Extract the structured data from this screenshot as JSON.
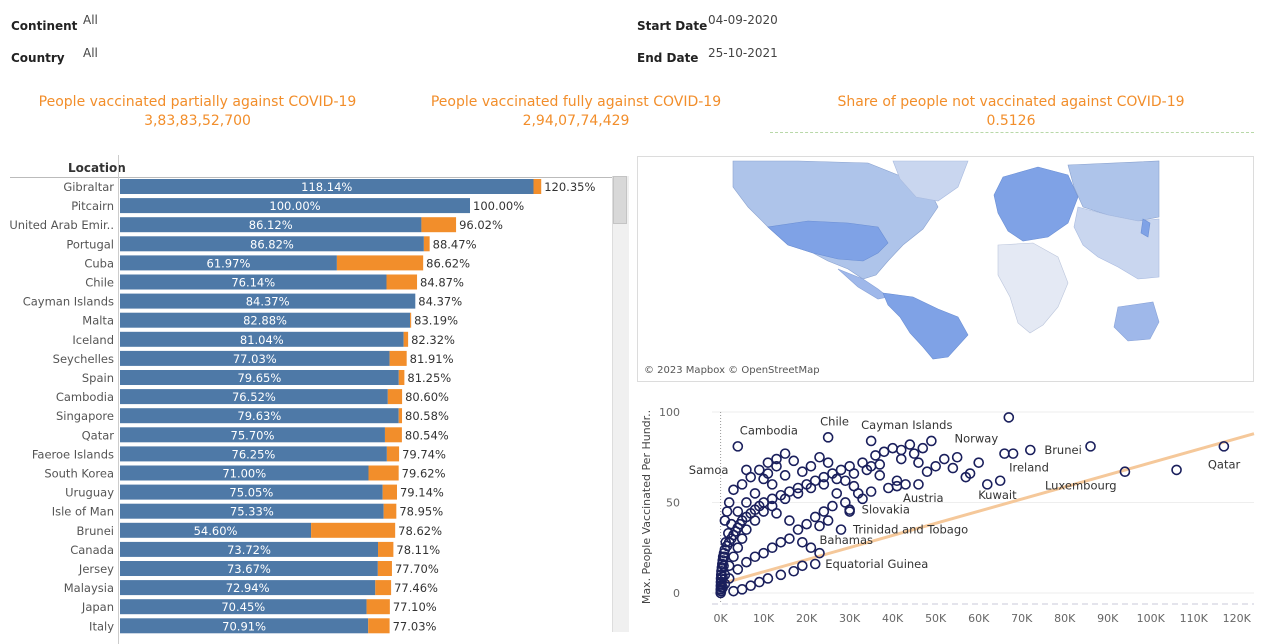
{
  "filters": {
    "continent_label": "Continent",
    "continent_value": "All",
    "country_label": "Country",
    "country_value": "All",
    "start_label": "Start Date",
    "start_value": "04-09-2020",
    "end_label": "End Date",
    "end_value": "25-10-2021"
  },
  "kpis": [
    {
      "title": "People vaccinated partially against COVID-19",
      "value": "3,83,83,52,700"
    },
    {
      "title": "People vaccinated fully against COVID-19",
      "value": "2,94,07,74,429"
    },
    {
      "title": "Share of people not vaccinated against COVID-19",
      "value": "0.5126"
    }
  ],
  "colors": {
    "fully": "#4e79a7",
    "partial": "#f28e2b",
    "scatter_point": "#1a1f5c",
    "trend": "#f5c89a",
    "accent": "#f28e2b"
  },
  "map": {
    "credit": "© 2023 Mapbox © OpenStreetMap"
  },
  "chart_data": [
    {
      "type": "bar",
      "stacked": true,
      "orientation": "horizontal",
      "header": "Location",
      "categories": [
        "Gibraltar",
        "Pitcairn",
        "United Arab Emir..",
        "Portugal",
        "Cuba",
        "Chile",
        "Cayman Islands",
        "Malta",
        "Iceland",
        "Seychelles",
        "Spain",
        "Cambodia",
        "Singapore",
        "Qatar",
        "Faeroe Islands",
        "South Korea",
        "Uruguay",
        "Isle of Man",
        "Brunei",
        "Canada",
        "Jersey",
        "Malaysia",
        "Japan",
        "Italy"
      ],
      "fully": [
        118.14,
        100.0,
        86.12,
        86.82,
        61.97,
        76.14,
        84.37,
        82.88,
        81.04,
        77.03,
        79.65,
        76.52,
        79.63,
        75.7,
        76.25,
        71.0,
        75.05,
        75.33,
        54.6,
        73.72,
        73.67,
        72.94,
        70.45,
        70.91
      ],
      "total": [
        120.35,
        100.0,
        96.02,
        88.47,
        86.62,
        84.87,
        84.37,
        83.19,
        82.32,
        81.91,
        81.25,
        80.6,
        80.58,
        80.54,
        79.74,
        79.62,
        79.14,
        78.95,
        78.62,
        78.11,
        77.7,
        77.46,
        77.1,
        77.03
      ],
      "fully_labels": [
        "118.14%",
        "100.00%",
        "86.12%",
        "86.82%",
        "61.97%",
        "76.14%",
        "84.37%",
        "82.88%",
        "81.04%",
        "77.03%",
        "79.65%",
        "76.52%",
        "79.63%",
        "75.70%",
        "76.25%",
        "71.00%",
        "75.05%",
        "75.33%",
        "54.60%",
        "73.72%",
        "73.67%",
        "72.94%",
        "70.45%",
        "70.91%"
      ],
      "total_labels": [
        "120.35%",
        "100.00%",
        "96.02%",
        "88.47%",
        "86.62%",
        "84.87%",
        "84.37%",
        "83.19%",
        "82.32%",
        "81.91%",
        "81.25%",
        "80.60%",
        "80.58%",
        "80.54%",
        "79.74%",
        "79.62%",
        "79.14%",
        "78.95%",
        "78.62%",
        "78.11%",
        "77.70%",
        "77.46%",
        "77.10%",
        "77.03%"
      ]
    },
    {
      "type": "scatter",
      "ylabel": "Max. People Vaccinated Per Hundr..",
      "xticks": [
        "0K",
        "10K",
        "20K",
        "30K",
        "40K",
        "50K",
        "60K",
        "70K",
        "80K",
        "90K",
        "100K",
        "110K",
        "120K"
      ],
      "yticks": [
        "0",
        "50",
        "100"
      ],
      "xlim": [
        -2000,
        124000
      ],
      "ylim": [
        -5,
        100
      ],
      "trend": [
        [
          0,
          5
        ],
        [
          124000,
          88
        ]
      ],
      "labeled_points": [
        {
          "label": "Cambodia",
          "x": 4000,
          "y": 81
        },
        {
          "label": "Chile",
          "x": 25000,
          "y": 86
        },
        {
          "label": "Cayman Islands",
          "x": 35000,
          "y": 84
        },
        {
          "label": "Norway",
          "x": 66000,
          "y": 77
        },
        {
          "label": "Brunei",
          "x": 72000,
          "y": 79
        },
        {
          "label": "Ireland",
          "x": 68000,
          "y": 77
        },
        {
          "label": "Samoa",
          "x": 6000,
          "y": 68
        },
        {
          "label": "Qatar",
          "x": 117000,
          "y": 81
        },
        {
          "label": "Luxembourg",
          "x": 94000,
          "y": 67
        },
        {
          "label": "Kuwait",
          "x": 65000,
          "y": 62
        },
        {
          "label": "Austria",
          "x": 41000,
          "y": 59
        },
        {
          "label": "Slovakia",
          "x": 30000,
          "y": 46
        },
        {
          "label": "Trinidad and Tobago",
          "x": 28000,
          "y": 35
        },
        {
          "label": "Bahamas",
          "x": 23000,
          "y": 37
        },
        {
          "label": "Equatorial Guinea",
          "x": 22000,
          "y": 16
        }
      ],
      "points": [
        [
          67000,
          97
        ],
        [
          86000,
          81
        ],
        [
          106000,
          68
        ],
        [
          52000,
          74
        ],
        [
          49000,
          84
        ],
        [
          44000,
          82
        ],
        [
          40000,
          80
        ],
        [
          38000,
          78
        ],
        [
          36000,
          76
        ],
        [
          33000,
          72
        ],
        [
          30000,
          70
        ],
        [
          28000,
          68
        ],
        [
          26000,
          66
        ],
        [
          24000,
          64
        ],
        [
          22000,
          62
        ],
        [
          20000,
          60
        ],
        [
          18000,
          58
        ],
        [
          16000,
          56
        ],
        [
          14000,
          54
        ],
        [
          12000,
          52
        ],
        [
          10000,
          50
        ],
        [
          9000,
          48
        ],
        [
          8000,
          46
        ],
        [
          7000,
          44
        ],
        [
          6000,
          42
        ],
        [
          5000,
          40
        ],
        [
          4500,
          38
        ],
        [
          4000,
          36
        ],
        [
          3500,
          34
        ],
        [
          3000,
          32
        ],
        [
          2500,
          30
        ],
        [
          2000,
          28
        ],
        [
          1500,
          26
        ],
        [
          1000,
          24
        ],
        [
          800,
          22
        ],
        [
          600,
          20
        ],
        [
          500,
          18
        ],
        [
          400,
          16
        ],
        [
          300,
          14
        ],
        [
          200,
          12
        ],
        [
          150,
          10
        ],
        [
          100,
          8
        ],
        [
          80,
          6
        ],
        [
          60,
          4
        ],
        [
          40,
          2
        ],
        [
          20,
          0
        ],
        [
          1000,
          10
        ],
        [
          2000,
          15
        ],
        [
          3000,
          20
        ],
        [
          4000,
          25
        ],
        [
          5000,
          30
        ],
        [
          6000,
          35
        ],
        [
          8000,
          40
        ],
        [
          10000,
          45
        ],
        [
          12000,
          48
        ],
        [
          15000,
          52
        ],
        [
          18000,
          55
        ],
        [
          21000,
          58
        ],
        [
          24000,
          60
        ],
        [
          27000,
          63
        ],
        [
          31000,
          66
        ],
        [
          34000,
          68
        ],
        [
          37000,
          71
        ],
        [
          42000,
          74
        ],
        [
          45000,
          77
        ],
        [
          47000,
          80
        ],
        [
          50000,
          70
        ],
        [
          55000,
          75
        ],
        [
          58000,
          66
        ],
        [
          60000,
          72
        ],
        [
          57000,
          64
        ],
        [
          43000,
          60
        ],
        [
          39000,
          58
        ],
        [
          35000,
          56
        ],
        [
          32000,
          55
        ],
        [
          29000,
          50
        ],
        [
          26000,
          48
        ],
        [
          24000,
          45
        ],
        [
          22000,
          42
        ],
        [
          20000,
          38
        ],
        [
          18000,
          35
        ],
        [
          16000,
          30
        ],
        [
          14000,
          28
        ],
        [
          12000,
          25
        ],
        [
          10000,
          22
        ],
        [
          8000,
          20
        ],
        [
          6000,
          17
        ],
        [
          4000,
          13
        ],
        [
          2000,
          8
        ],
        [
          1000,
          5
        ],
        [
          500,
          3
        ],
        [
          15000,
          65
        ],
        [
          13000,
          70
        ],
        [
          11000,
          72
        ],
        [
          9000,
          68
        ],
        [
          7000,
          64
        ],
        [
          5000,
          60
        ],
        [
          3000,
          57
        ],
        [
          2000,
          50
        ],
        [
          1500,
          45
        ],
        [
          1000,
          40
        ],
        [
          13000,
          44
        ],
        [
          16000,
          40
        ],
        [
          19000,
          28
        ],
        [
          21000,
          25
        ],
        [
          23000,
          22
        ],
        [
          19000,
          15
        ],
        [
          17000,
          12
        ],
        [
          14000,
          10
        ],
        [
          11000,
          8
        ],
        [
          9000,
          6
        ],
        [
          7000,
          4
        ],
        [
          5000,
          2
        ],
        [
          3000,
          1
        ],
        [
          25000,
          72
        ],
        [
          23000,
          75
        ],
        [
          21000,
          70
        ],
        [
          19000,
          67
        ],
        [
          17000,
          73
        ],
        [
          15000,
          77
        ],
        [
          13000,
          74
        ],
        [
          11000,
          66
        ],
        [
          27000,
          55
        ],
        [
          29000,
          62
        ],
        [
          31000,
          59
        ],
        [
          33000,
          52
        ],
        [
          35000,
          70
        ],
        [
          37000,
          65
        ],
        [
          42000,
          79
        ],
        [
          46000,
          72
        ],
        [
          48000,
          67
        ],
        [
          54000,
          69
        ],
        [
          62000,
          60
        ],
        [
          46000,
          60
        ],
        [
          41000,
          62
        ],
        [
          30000,
          45
        ],
        [
          25000,
          40
        ],
        [
          12000,
          60
        ],
        [
          10000,
          63
        ],
        [
          8000,
          55
        ],
        [
          6000,
          50
        ],
        [
          4000,
          45
        ],
        [
          2500,
          38
        ],
        [
          1800,
          33
        ],
        [
          1200,
          28
        ],
        [
          900,
          20
        ],
        [
          700,
          15
        ],
        [
          450,
          9
        ],
        [
          250,
          6
        ],
        [
          150,
          3
        ],
        [
          100,
          1
        ]
      ]
    }
  ]
}
